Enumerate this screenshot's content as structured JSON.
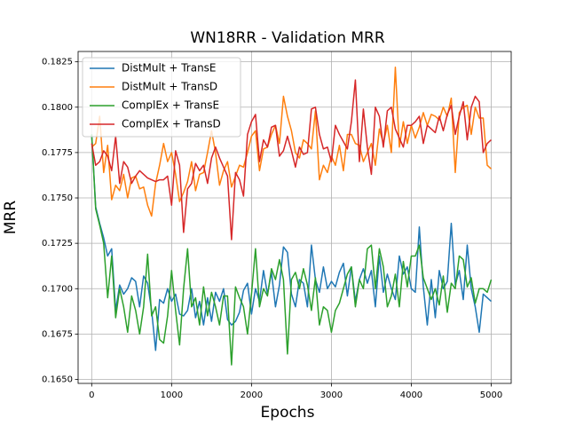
{
  "chart_data": {
    "type": "line",
    "title": "WN18RR - Validation MRR",
    "x_label": "Epochs",
    "y_label": "MRR",
    "x": [
      0,
      50,
      100,
      150,
      200,
      250,
      300,
      350,
      400,
      450,
      500,
      550,
      600,
      650,
      700,
      750,
      800,
      850,
      900,
      950,
      1000,
      1050,
      1100,
      1150,
      1200,
      1250,
      1300,
      1350,
      1400,
      1450,
      1500,
      1550,
      1600,
      1650,
      1700,
      1750,
      1800,
      1850,
      1900,
      1950,
      2000,
      2050,
      2100,
      2150,
      2200,
      2250,
      2300,
      2350,
      2400,
      2450,
      2500,
      2550,
      2600,
      2650,
      2700,
      2750,
      2800,
      2850,
      2900,
      2950,
      3000,
      3050,
      3100,
      3150,
      3200,
      3250,
      3300,
      3350,
      3400,
      3450,
      3500,
      3550,
      3600,
      3650,
      3700,
      3750,
      3800,
      3850,
      3900,
      3950,
      4000,
      4050,
      4100,
      4150,
      4200,
      4250,
      4300,
      4350,
      4400,
      4450,
      4500,
      4550,
      4600,
      4650,
      4700,
      4750,
      4800,
      4850,
      4900,
      4950,
      5000
    ],
    "series": [
      {
        "name": "DistMult + TransE",
        "color": "#1f77b4",
        "values": [
          0.1785,
          0.1745,
          0.1736,
          0.1728,
          0.1718,
          0.1722,
          0.1688,
          0.1702,
          0.1697,
          0.17,
          0.1706,
          0.1704,
          0.169,
          0.1707,
          0.1703,
          0.1688,
          0.1666,
          0.1694,
          0.1692,
          0.17,
          0.1693,
          0.1697,
          0.1686,
          0.1685,
          0.1688,
          0.17,
          0.1684,
          0.1693,
          0.168,
          0.1695,
          0.1682,
          0.1698,
          0.1693,
          0.17,
          0.1683,
          0.168,
          0.1682,
          0.1687,
          0.1699,
          0.1703,
          0.1686,
          0.17,
          0.1693,
          0.171,
          0.1697,
          0.1709,
          0.169,
          0.1702,
          0.1723,
          0.172,
          0.1697,
          0.169,
          0.1705,
          0.1703,
          0.169,
          0.1724,
          0.1705,
          0.1698,
          0.1712,
          0.17,
          0.1704,
          0.1701,
          0.1709,
          0.1714,
          0.1696,
          0.1712,
          0.1693,
          0.1705,
          0.1711,
          0.1703,
          0.171,
          0.169,
          0.1718,
          0.1698,
          0.1708,
          0.17,
          0.1694,
          0.1718,
          0.1708,
          0.1712,
          0.17,
          0.1698,
          0.1734,
          0.1701,
          0.168,
          0.1705,
          0.1684,
          0.171,
          0.17,
          0.1704,
          0.1736,
          0.1702,
          0.171,
          0.1694,
          0.1724,
          0.17,
          0.169,
          0.1676,
          0.1697,
          0.1695,
          0.1693
        ]
      },
      {
        "name": "DistMult + TransD",
        "color": "#ff7f0e",
        "values": [
          0.1778,
          0.178,
          0.1795,
          0.1764,
          0.1779,
          0.1749,
          0.1757,
          0.1754,
          0.1763,
          0.175,
          0.1761,
          0.1762,
          0.1755,
          0.1756,
          0.1746,
          0.174,
          0.1758,
          0.1768,
          0.178,
          0.177,
          0.1775,
          0.1763,
          0.1748,
          0.1753,
          0.1759,
          0.177,
          0.1754,
          0.1763,
          0.1764,
          0.1775,
          0.1787,
          0.1775,
          0.1757,
          0.1765,
          0.177,
          0.1756,
          0.1762,
          0.1768,
          0.1767,
          0.1775,
          0.1784,
          0.1787,
          0.1765,
          0.1777,
          0.1778,
          0.1785,
          0.179,
          0.178,
          0.1806,
          0.1795,
          0.1787,
          0.1775,
          0.1772,
          0.1782,
          0.178,
          0.1777,
          0.1798,
          0.176,
          0.1768,
          0.1764,
          0.1773,
          0.1768,
          0.1779,
          0.1765,
          0.1785,
          0.1785,
          0.178,
          0.1779,
          0.177,
          0.1775,
          0.178,
          0.1768,
          0.1788,
          0.178,
          0.179,
          0.1775,
          0.1822,
          0.1778,
          0.1792,
          0.178,
          0.179,
          0.1783,
          0.1789,
          0.1797,
          0.179,
          0.1796,
          0.1795,
          0.1793,
          0.18,
          0.1795,
          0.1805,
          0.1764,
          0.1797,
          0.18,
          0.1801,
          0.1785,
          0.18,
          0.1794,
          0.1794,
          0.1768,
          0.1766
        ]
      },
      {
        "name": "ComplEx + TransE",
        "color": "#2ca02c",
        "values": [
          0.1785,
          0.1744,
          0.1735,
          0.1725,
          0.1695,
          0.1718,
          0.1684,
          0.17,
          0.169,
          0.1676,
          0.1696,
          0.1688,
          0.1675,
          0.169,
          0.1719,
          0.1685,
          0.169,
          0.1672,
          0.167,
          0.1685,
          0.171,
          0.1688,
          0.1669,
          0.17,
          0.1722,
          0.169,
          0.1695,
          0.168,
          0.1701,
          0.1685,
          0.1698,
          0.169,
          0.168,
          0.1696,
          0.1696,
          0.1658,
          0.1701,
          0.1695,
          0.169,
          0.1675,
          0.1697,
          0.1722,
          0.169,
          0.17,
          0.1696,
          0.1711,
          0.1705,
          0.1716,
          0.1705,
          0.1664,
          0.1705,
          0.1709,
          0.17,
          0.1711,
          0.1702,
          0.1688,
          0.1706,
          0.168,
          0.169,
          0.1688,
          0.1676,
          0.1688,
          0.1692,
          0.17,
          0.1708,
          0.1712,
          0.169,
          0.1705,
          0.17,
          0.1722,
          0.1724,
          0.17,
          0.1722,
          0.1712,
          0.169,
          0.1696,
          0.1708,
          0.169,
          0.1715,
          0.1701,
          0.1718,
          0.1718,
          0.1724,
          0.1706,
          0.17,
          0.1694,
          0.17,
          0.1691,
          0.1707,
          0.1687,
          0.1703,
          0.17,
          0.1718,
          0.1716,
          0.1701,
          0.1706,
          0.1692,
          0.17,
          0.17,
          0.1698,
          0.1705
        ]
      },
      {
        "name": "ComplEx + TransD",
        "color": "#d62728",
        "values": [
          0.178,
          0.1768,
          0.177,
          0.1776,
          0.1773,
          0.1765,
          0.1784,
          0.1758,
          0.177,
          0.1767,
          0.1758,
          0.1762,
          0.1765,
          0.1763,
          0.1761,
          0.176,
          0.1759,
          0.176,
          0.176,
          0.1762,
          0.1746,
          0.1776,
          0.1768,
          0.1731,
          0.1755,
          0.1758,
          0.1769,
          0.1765,
          0.1768,
          0.1758,
          0.1772,
          0.1778,
          0.1772,
          0.1767,
          0.1762,
          0.1727,
          0.1764,
          0.176,
          0.1751,
          0.1785,
          0.1792,
          0.1796,
          0.177,
          0.1782,
          0.1778,
          0.1789,
          0.179,
          0.1773,
          0.1776,
          0.1784,
          0.1776,
          0.1767,
          0.1778,
          0.1774,
          0.1775,
          0.1799,
          0.18,
          0.1785,
          0.1777,
          0.1778,
          0.177,
          0.179,
          0.1785,
          0.1781,
          0.1777,
          0.1792,
          0.1815,
          0.177,
          0.1799,
          0.1778,
          0.1763,
          0.18,
          0.1795,
          0.1778,
          0.1798,
          0.18,
          0.1788,
          0.1783,
          0.1778,
          0.179,
          0.179,
          0.1792,
          0.1795,
          0.178,
          0.179,
          0.1788,
          0.1786,
          0.1795,
          0.1787,
          0.1796,
          0.1801,
          0.1785,
          0.1795,
          0.1803,
          0.1782,
          0.18,
          0.1806,
          0.1803,
          0.1775,
          0.178,
          0.1782
        ]
      }
    ],
    "xlim": [
      -170,
      5250
    ],
    "xticks": [
      0,
      1000,
      2000,
      3000,
      4000,
      5000
    ],
    "ylim": [
      0.16478,
      0.18307
    ],
    "yticks": [
      {
        "value": 0.165,
        "label": "0.1650"
      },
      {
        "value": 0.1675,
        "label": "0.1675"
      },
      {
        "value": 0.17,
        "label": "0.1700"
      },
      {
        "value": 0.1725,
        "label": "0.1725"
      },
      {
        "value": 0.175,
        "label": "0.1750"
      },
      {
        "value": 0.1775,
        "label": "0.1775"
      },
      {
        "value": 0.18,
        "label": "0.1800"
      },
      {
        "value": 0.1825,
        "label": "0.1825"
      }
    ],
    "grid": true,
    "legend": "upper left"
  }
}
